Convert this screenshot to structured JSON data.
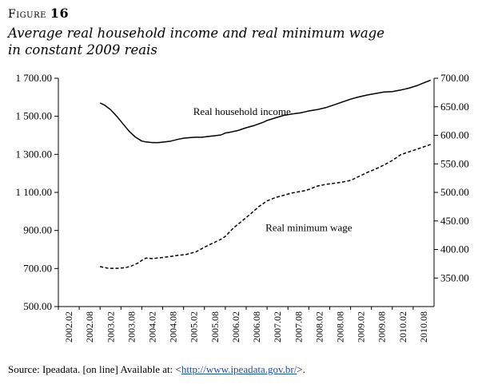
{
  "figure": {
    "label_prefix": "Figure",
    "label_number": "16",
    "title_line1": "Average real household income and real minimum wage",
    "title_line2": "in constant 2009 reais"
  },
  "source": {
    "prefix": "Source: Ipeadata. [on line] Available at: <",
    "url_text": "http://www.ipeadata.gov.br/",
    "suffix": ">."
  },
  "chart_data": {
    "type": "line",
    "title": "Average real household income and real minimum wage in constant 2009 reais",
    "xlabel": "",
    "ylabel_left": "",
    "ylabel_right": "",
    "x_tick_labels": [
      "2002.02",
      "2002.08",
      "2003.02",
      "2003.08",
      "2004.02",
      "2004.08",
      "2005.02",
      "2005.08",
      "2006.02",
      "2006.08",
      "2007.02",
      "2007.08",
      "2008.02",
      "2008.08",
      "2009.02",
      "2009.08",
      "2010.02",
      "2010.08"
    ],
    "x_range": [
      2002.0,
      2011.0
    ],
    "y_left": {
      "range": [
        500,
        1700
      ],
      "ticks": [
        500,
        700,
        900,
        1100,
        1300,
        1500,
        1700
      ],
      "tick_labels": [
        "500.00",
        "700.00",
        "900.00",
        "1 100.00",
        "1 300.00",
        "1 500.00",
        "1 700.00"
      ]
    },
    "y_right": {
      "range": [
        300,
        700
      ],
      "ticks": [
        350,
        400,
        450,
        500,
        550,
        600,
        650,
        700
      ],
      "tick_labels": [
        "350.00",
        "400.00",
        "450.00",
        "500.00",
        "550.00",
        "600.00",
        "650.00",
        "700.00"
      ]
    },
    "grid": false,
    "series": [
      {
        "name": "Real household income",
        "axis": "left",
        "style": "solid",
        "label": "Real household income",
        "x": [
          2003.0,
          2003.1,
          2003.25,
          2003.4,
          2003.55,
          2003.7,
          2003.85,
          2004.0,
          2004.1,
          2004.25,
          2004.4,
          2004.55,
          2004.7,
          2004.85,
          2005.0,
          2005.15,
          2005.3,
          2005.45,
          2005.6,
          2005.75,
          2005.9,
          2006.0,
          2006.15,
          2006.3,
          2006.5,
          2006.7,
          2006.9,
          2007.0,
          2007.2,
          2007.4,
          2007.6,
          2007.8,
          2008.0,
          2008.2,
          2008.4,
          2008.6,
          2008.8,
          2009.0,
          2009.2,
          2009.4,
          2009.6,
          2009.8,
          2010.0,
          2010.2,
          2010.4,
          2010.6,
          2010.8,
          2010.92
        ],
        "y": [
          1570,
          1560,
          1535,
          1500,
          1460,
          1420,
          1390,
          1370,
          1365,
          1362,
          1362,
          1365,
          1370,
          1378,
          1385,
          1388,
          1390,
          1390,
          1394,
          1398,
          1402,
          1412,
          1418,
          1425,
          1440,
          1452,
          1468,
          1478,
          1492,
          1505,
          1512,
          1518,
          1528,
          1535,
          1545,
          1560,
          1575,
          1590,
          1602,
          1612,
          1620,
          1628,
          1630,
          1638,
          1648,
          1662,
          1680,
          1690
        ]
      },
      {
        "name": "Real minimum wage",
        "axis": "right",
        "style": "dashed",
        "label": "Real minimum wage",
        "x": [
          2003.0,
          2003.2,
          2003.4,
          2003.6,
          2003.75,
          2003.9,
          2004.0,
          2004.1,
          2004.25,
          2004.5,
          2004.7,
          2004.9,
          2005.05,
          2005.3,
          2005.5,
          2005.7,
          2005.9,
          2006.0,
          2006.2,
          2006.4,
          2006.6,
          2006.8,
          2007.0,
          2007.2,
          2007.4,
          2007.6,
          2007.9,
          2008.0,
          2008.2,
          2008.4,
          2008.6,
          2008.8,
          2009.0,
          2009.2,
          2009.4,
          2009.6,
          2009.8,
          2010.0,
          2010.2,
          2010.4,
          2010.6,
          2010.8,
          2010.92
        ],
        "y": [
          370,
          367,
          367,
          368,
          371,
          376,
          381,
          385,
          384,
          386,
          388,
          390,
          391,
          396,
          404,
          411,
          418,
          423,
          438,
          450,
          462,
          475,
          485,
          491,
          495,
          499,
          503,
          505,
          511,
          514,
          516,
          518,
          521,
          528,
          535,
          541,
          548,
          556,
          566,
          571,
          576,
          581,
          584
        ]
      }
    ],
    "annotations": [
      {
        "text": "Real household income",
        "near_series": "Real household income"
      },
      {
        "text": "Real minimum wage",
        "near_series": "Real minimum wage"
      }
    ]
  }
}
